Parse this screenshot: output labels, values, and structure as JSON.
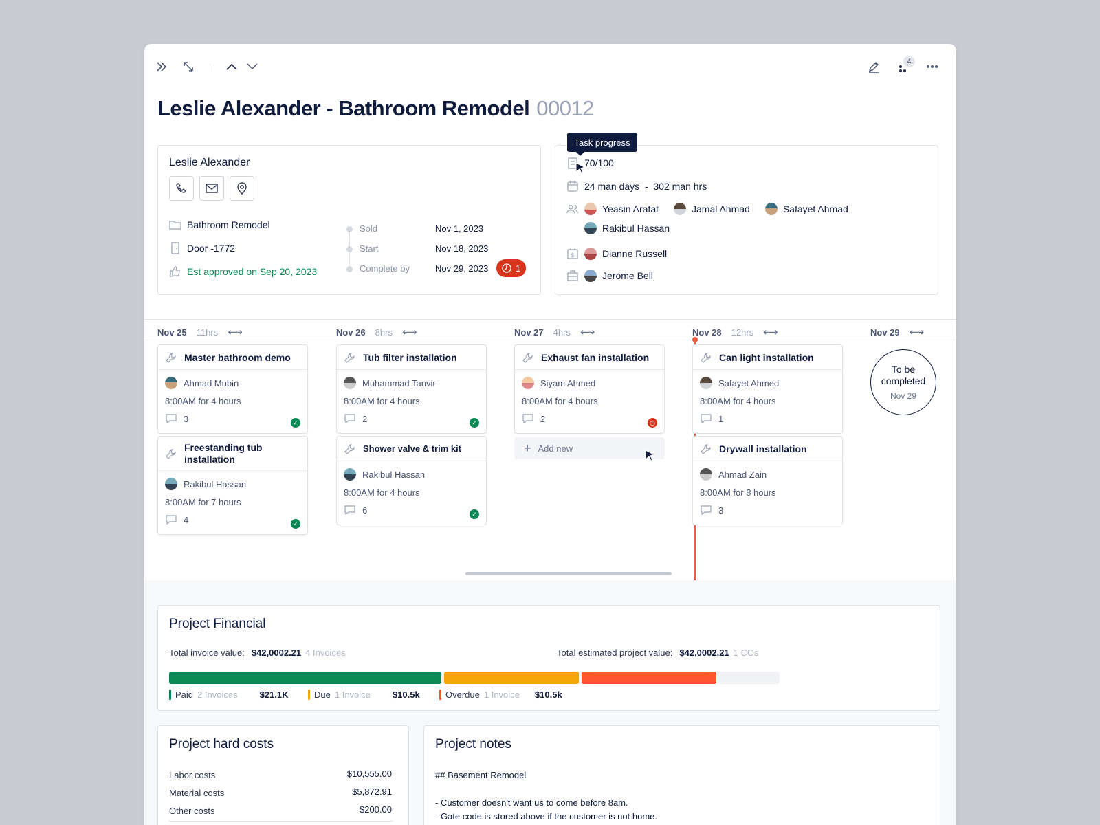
{
  "toolbar": {
    "notif_count": "4"
  },
  "header": {
    "title": "Leslie Alexander - Bathroom Remodel",
    "number": "00012"
  },
  "customer": {
    "name": "Leslie Alexander",
    "project": "Bathroom Remodel",
    "door": "Door -1772",
    "approval": "Est approved on Sep 20, 2023",
    "milestones": [
      {
        "label": "Sold",
        "date": "Nov 1, 2023"
      },
      {
        "label": "Start",
        "date": "Nov 18, 2023"
      },
      {
        "label": "Complete by",
        "date": "Nov 29, 2023"
      }
    ],
    "late_count": "1"
  },
  "progress": {
    "tooltip": "Task progress",
    "tasks": "70/100",
    "effort": "24 man days  -  302 man hrs",
    "crew": [
      "Yeasin Arafat",
      "Jamal Ahmad",
      "Safayet Ahmad",
      "Rakibul Hassan"
    ],
    "sales": "Dianne Russell",
    "office": "Jerome Bell"
  },
  "timeline": {
    "days": [
      {
        "date": "Nov 25",
        "hrs": "11hrs"
      },
      {
        "date": "Nov 26",
        "hrs": "8hrs"
      },
      {
        "date": "Nov 27",
        "hrs": "4hrs"
      },
      {
        "date": "Nov 28",
        "hrs": "12hrs"
      },
      {
        "date": "Nov 29",
        "hrs": ""
      }
    ],
    "tasks": [
      {
        "title": "Master bathroom demo",
        "person": "Ahmad Mubin",
        "time": "8:00AM for 4 hours",
        "comments": "3"
      },
      {
        "title": "Freestanding tub installation",
        "person": "Rakibul Hassan",
        "time": "8:00AM for 7 hours",
        "comments": "4"
      },
      {
        "title": "Tub filter installation",
        "person": "Muhammad Tanvir",
        "time": "8:00AM for 4 hours",
        "comments": "2"
      },
      {
        "title": "Shower valve & trim kit",
        "person": "Rakibul Hassan",
        "time": "8:00AM for 4 hours",
        "comments": "6"
      },
      {
        "title": "Exhaust fan installation",
        "person": "Siyam Ahmed",
        "time": "8:00AM for 4 hours",
        "comments": "2"
      },
      {
        "title": "Can light installation",
        "person": "Safayet Ahmed",
        "time": "8:00AM for 4 hours",
        "comments": "1"
      },
      {
        "title": "Drywall installation",
        "person": "Ahmad Zain",
        "time": "8:00AM for 8 hours",
        "comments": "3"
      }
    ],
    "add_new": "Add new",
    "tbc_title": "To be completed",
    "tbc_date": "Nov 29"
  },
  "financial": {
    "title": "Project Financial",
    "invoice_label": "Total invoice value:",
    "invoice_value": "$42,0002.21",
    "invoice_count": "4 Invoices",
    "estimate_label": "Total estimated project value:",
    "estimate_value": "$42,0002.21",
    "co_count": "1 COs",
    "segments": [
      {
        "label": "Paid",
        "count": "2 Invoices",
        "amount": "$21.1K",
        "color": "#0a8a55",
        "fraction": 0.45
      },
      {
        "label": "Due",
        "count": "1 Invoice",
        "amount": "$10.5k",
        "color": "#f5a50a",
        "fraction": 0.225
      },
      {
        "label": "Overdue",
        "count": "1 Invoice",
        "amount": "$10.5k",
        "color": "#ff5530",
        "fraction": 0.225
      }
    ]
  },
  "hard_costs": {
    "title": "Project hard costs",
    "rows": [
      {
        "label": "Labor costs",
        "value": "$10,555.00"
      },
      {
        "label": "Material costs",
        "value": "$5,872.91"
      },
      {
        "label": "Other costs",
        "value": "$200.00"
      }
    ]
  },
  "notes": {
    "title": "Project notes",
    "heading": "## Basement Remodel",
    "lines": [
      "- Customer doesn't want us to come before 8am.",
      "- Gate code is stored above if the customer is not home."
    ]
  }
}
